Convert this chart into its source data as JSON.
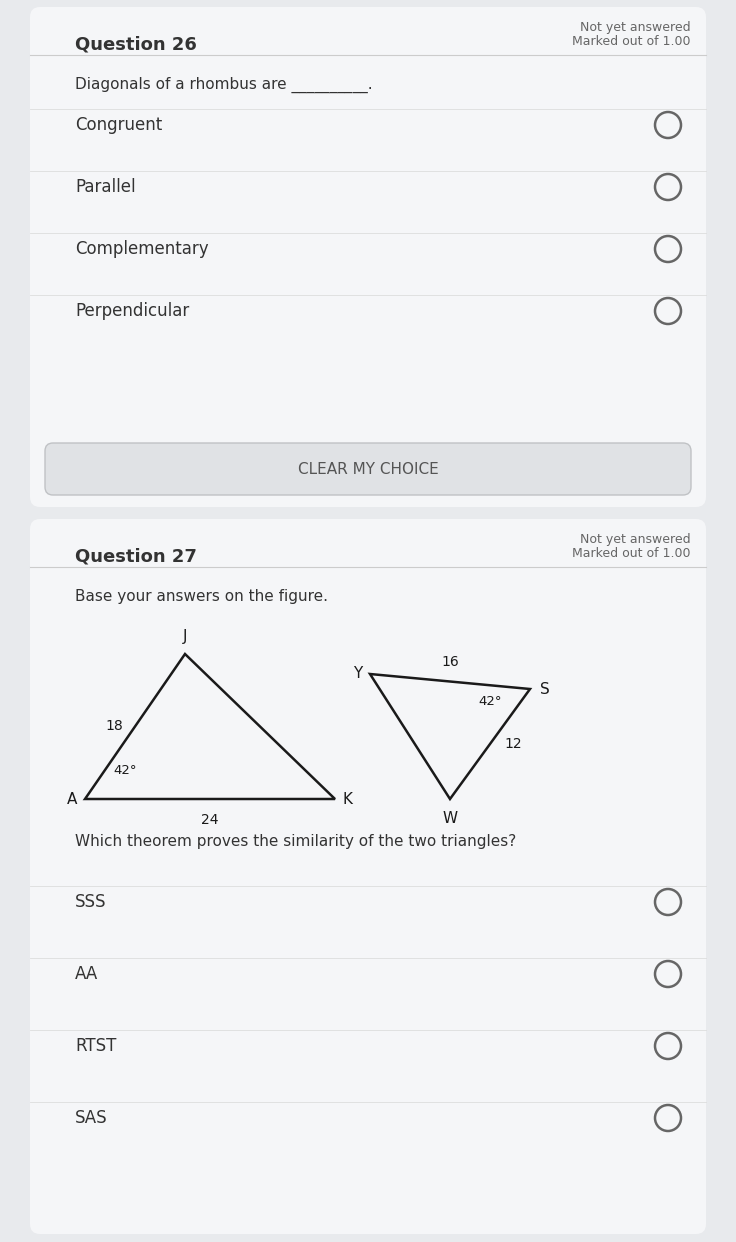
{
  "bg_color": "#e8eaed",
  "card_color": "#f5f6f8",
  "text_color": "#333333",
  "light_text": "#666666",
  "header_text": "#555555",
  "q26_title": "Question 26",
  "q26_status": "Not yet answered",
  "q26_marked": "Marked out of 1.00",
  "q26_question": "Diagonals of a rhombus are __________.",
  "q26_options": [
    "Congruent",
    "Parallel",
    "Complementary",
    "Perpendicular"
  ],
  "clear_btn": "CLEAR MY CHOICE",
  "q27_title": "Question 27",
  "q27_status": "Not yet answered",
  "q27_marked": "Marked out of 1.00",
  "q27_instruction": "Base your answers on the figure.",
  "q27_question": "Which theorem proves the similarity of the two triangles?",
  "q27_options": [
    "SSS",
    "AA",
    "RTST",
    "SAS"
  ],
  "tri1_label_A": "A",
  "tri1_label_J": "J",
  "tri1_label_K": "K",
  "tri1_side_AJ": "18",
  "tri1_side_AK": "24",
  "tri1_angle_A": "42°",
  "tri2_label_Y": "Y",
  "tri2_label_S": "S",
  "tri2_label_W": "W",
  "tri2_side_YS": "16",
  "tri2_side_SW": "12",
  "tri2_angle_S": "42°"
}
